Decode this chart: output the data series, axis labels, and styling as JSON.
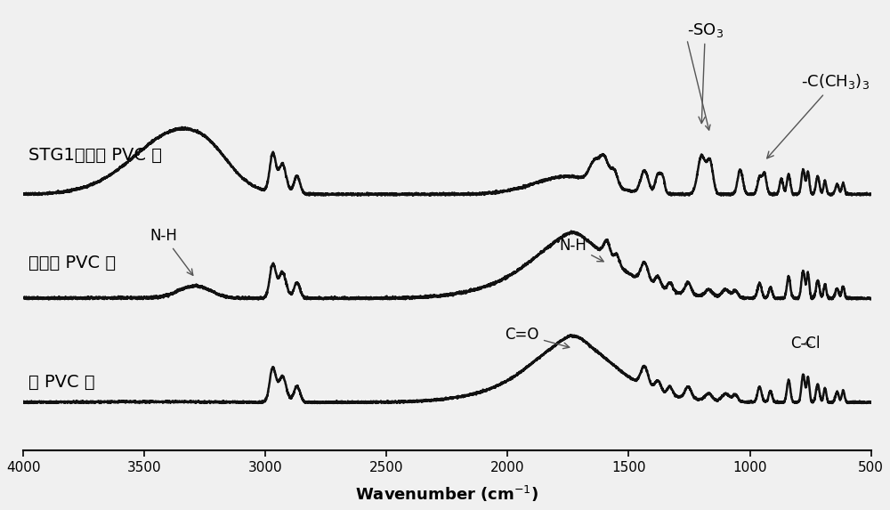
{
  "xlim": [
    4000,
    500
  ],
  "ylim": [
    -0.5,
    4.2
  ],
  "xticks": [
    4000,
    3500,
    3000,
    2500,
    2000,
    1500,
    1000,
    500
  ],
  "bg_color": "#f0f0f0",
  "line_color": "#111111",
  "lw": 1.8,
  "label_stg1": "STG1修饰的 PVC 膜",
  "label_amino": "氨基化 PVC 膜",
  "label_bare": "裸 PVC 膜",
  "off_stg1": 2.2,
  "off_amino": 1.1,
  "off_bare": 0.0,
  "figsize": [
    10.0,
    5.73
  ],
  "dpi": 100
}
